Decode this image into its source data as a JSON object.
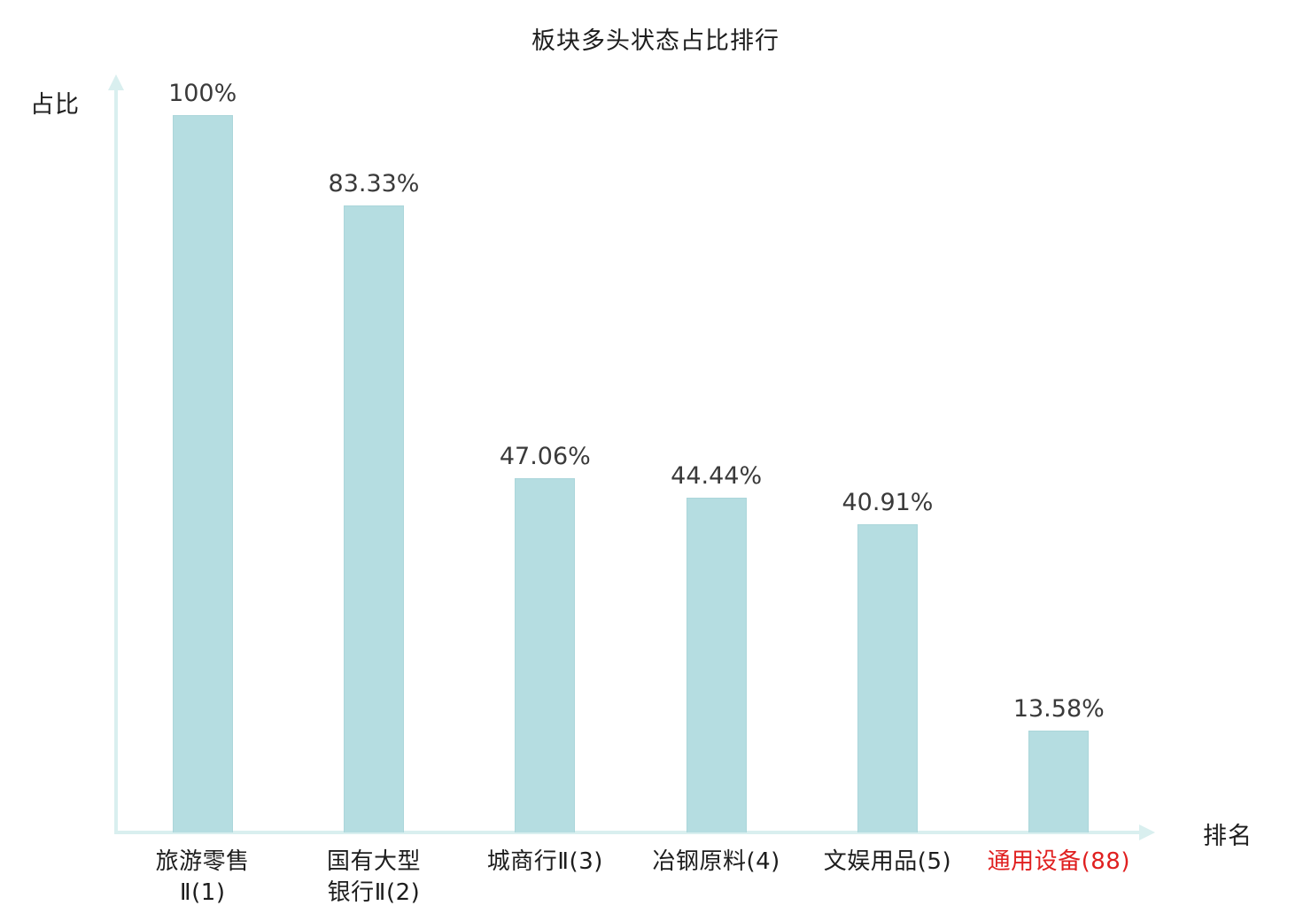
{
  "chart_data": {
    "type": "bar",
    "title": "板块多头状态占比排行",
    "ylabel": "占比",
    "xlabel": "排名",
    "ylim": [
      0,
      100
    ],
    "categories": [
      "旅游零售\nⅡ(1)",
      "国有大型\n银行Ⅱ(2)",
      "城商行Ⅱ(3)",
      "冶钢原料(4)",
      "文娱用品(5)",
      "通用设备(88)"
    ],
    "values": [
      100,
      83.33,
      47.06,
      44.44,
      40.91,
      13.58
    ],
    "value_labels": [
      "100%",
      "83.33%",
      "47.06%",
      "44.44%",
      "40.91%",
      "13.58%"
    ],
    "legend": [],
    "grid": false,
    "bar_color": "#b5dde1",
    "axis_color": "#d9efef",
    "value_label_color": "#3a3a3a",
    "category_label_color": "#1d1d1d",
    "highlight_index": 5,
    "highlight_color": "#e02020"
  }
}
